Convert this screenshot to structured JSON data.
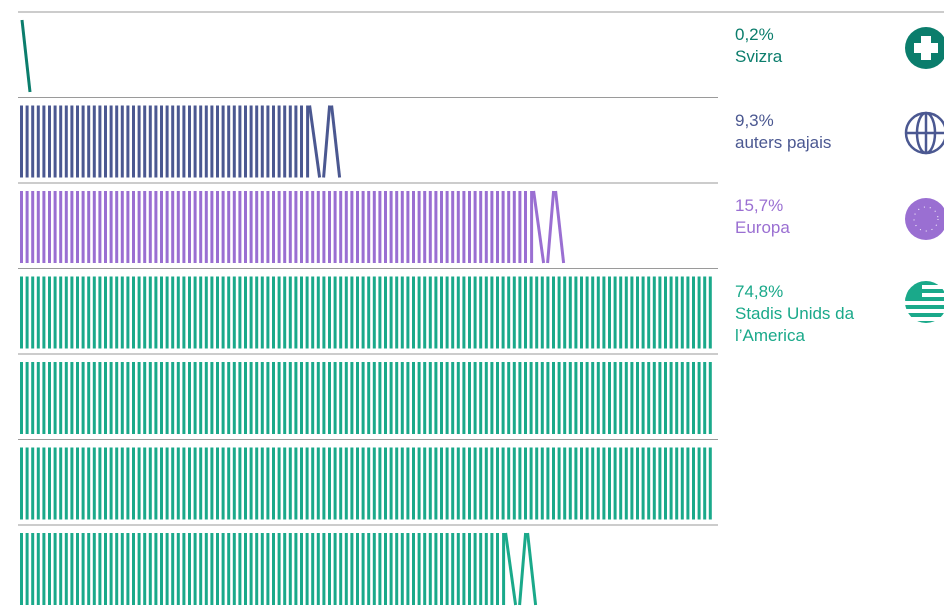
{
  "chart_data": {
    "type": "tally",
    "categories": [
      "Svizra",
      "auters pajais",
      "Europa",
      "Stadis Unids da l’America"
    ],
    "values": [
      0.2,
      9.3,
      15.7,
      74.8
    ],
    "value_labels": [
      "0,2%",
      "9,3%",
      "15,7%",
      "74,8%"
    ],
    "colors": [
      "#0b7d6c",
      "#4b5891",
      "#9a6fd2",
      "#1aa98a"
    ]
  }
}
